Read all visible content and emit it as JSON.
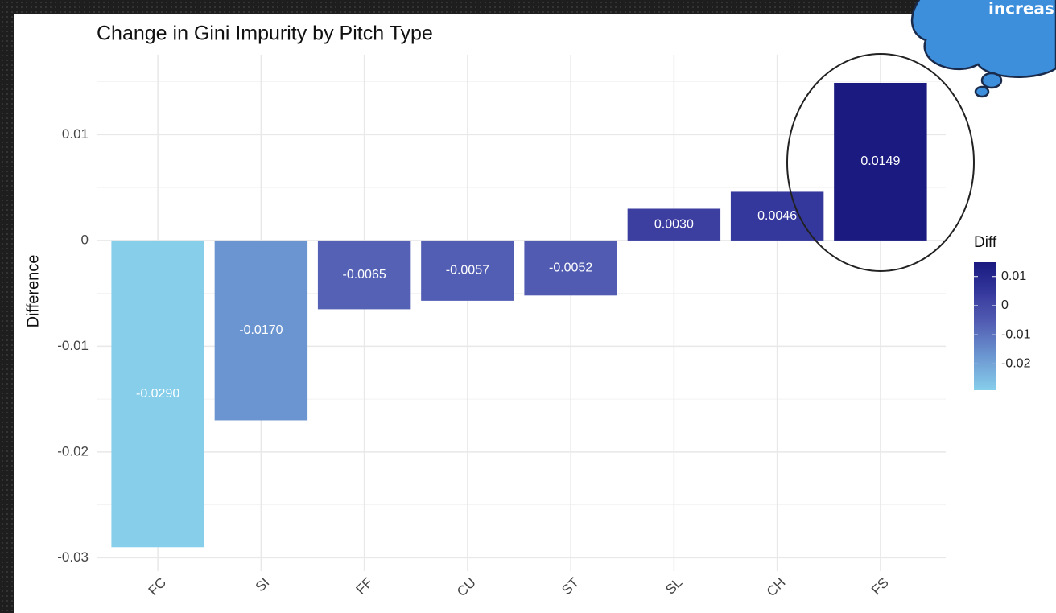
{
  "chart_data": {
    "type": "bar",
    "title": "Change in Gini Impurity by Pitch Type",
    "y_label": "Difference",
    "categories": [
      "FC",
      "SI",
      "FF",
      "CU",
      "ST",
      "SL",
      "CH",
      "FS"
    ],
    "values": [
      -0.029,
      -0.017,
      -0.0065,
      -0.0057,
      -0.0052,
      0.003,
      0.0046,
      0.0149
    ],
    "value_labels": [
      "-0.0290",
      "-0.0170",
      "-0.0065",
      "-0.0057",
      "-0.0052",
      "0.0030",
      "0.0046",
      "0.0149"
    ],
    "colors": [
      "#87ceeb",
      "#6b95d0",
      "#5461b5",
      "#525eb3",
      "#505bb1",
      "#3c3fa0",
      "#34379b",
      "#1a1a80"
    ],
    "ylim": [
      -0.0305,
      0.0168
    ],
    "yticks": [
      -0.03,
      -0.02,
      -0.01,
      0.0,
      0.01
    ],
    "grid": true,
    "legend": {
      "title": "Diff",
      "ticks": [
        -0.02,
        -0.01,
        0.0,
        0.01
      ]
    },
    "callout": "increas"
  }
}
